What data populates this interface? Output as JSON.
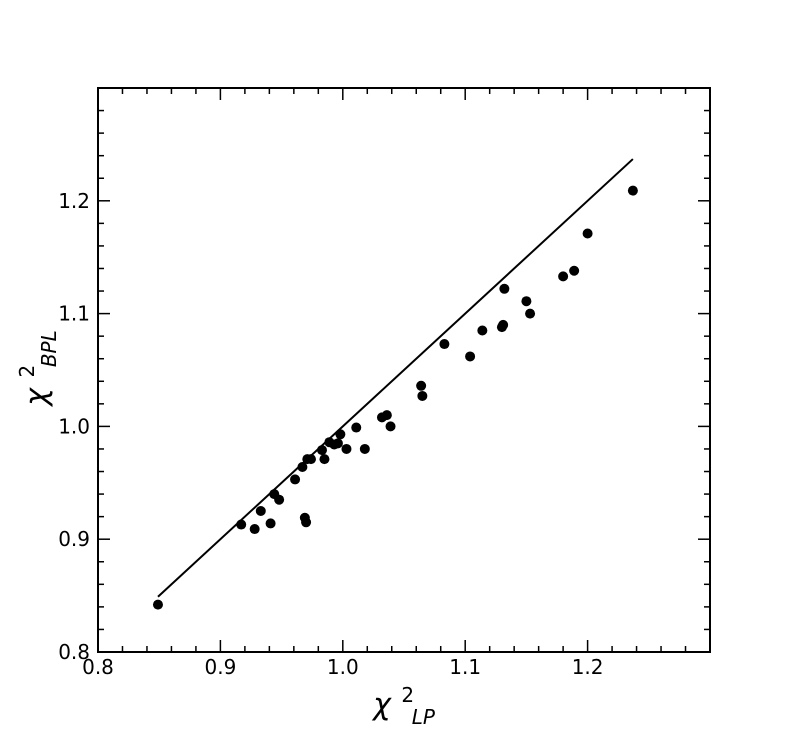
{
  "chart_data": {
    "type": "scatter",
    "title": "",
    "xlabel": {
      "base": "χ",
      "sup": "2",
      "sub": "LP"
    },
    "ylabel": {
      "base": "χ",
      "sup": "2",
      "sub": "BPL"
    },
    "xlim": [
      0.8,
      1.3
    ],
    "ylim": [
      0.8,
      1.3
    ],
    "xticks": [
      0.8,
      0.9,
      1.0,
      1.1,
      1.2
    ],
    "yticks": [
      0.8,
      0.9,
      1.0,
      1.1,
      1.2
    ],
    "xtick_labels": [
      "0.8",
      "0.9",
      "1.0",
      "1.1",
      "1.2"
    ],
    "ytick_labels": [
      "0.8",
      "0.9",
      "1.0",
      "1.1",
      "1.2"
    ],
    "minor_step": 0.02,
    "ticks_direction": "in",
    "ticks_all_sides": true,
    "grid": false,
    "legend": null,
    "colors": {
      "points": "#000000",
      "line": "#000000",
      "axes": "#000000"
    },
    "line": {
      "x": [
        0.849,
        1.237
      ],
      "y": [
        0.849,
        1.237
      ]
    },
    "points": [
      {
        "x": 0.849,
        "y": 0.842
      },
      {
        "x": 0.917,
        "y": 0.913
      },
      {
        "x": 0.928,
        "y": 0.909
      },
      {
        "x": 0.933,
        "y": 0.925
      },
      {
        "x": 0.941,
        "y": 0.914
      },
      {
        "x": 0.944,
        "y": 0.94
      },
      {
        "x": 0.948,
        "y": 0.935
      },
      {
        "x": 0.961,
        "y": 0.953
      },
      {
        "x": 0.967,
        "y": 0.964
      },
      {
        "x": 0.969,
        "y": 0.919
      },
      {
        "x": 0.97,
        "y": 0.915
      },
      {
        "x": 0.971,
        "y": 0.971
      },
      {
        "x": 0.974,
        "y": 0.971
      },
      {
        "x": 0.983,
        "y": 0.979
      },
      {
        "x": 0.985,
        "y": 0.971
      },
      {
        "x": 0.989,
        "y": 0.986
      },
      {
        "x": 0.993,
        "y": 0.984
      },
      {
        "x": 0.996,
        "y": 0.985
      },
      {
        "x": 0.998,
        "y": 0.993
      },
      {
        "x": 1.003,
        "y": 0.98
      },
      {
        "x": 1.011,
        "y": 0.999
      },
      {
        "x": 1.018,
        "y": 0.98
      },
      {
        "x": 1.032,
        "y": 1.008
      },
      {
        "x": 1.036,
        "y": 1.01
      },
      {
        "x": 1.039,
        "y": 1.0
      },
      {
        "x": 1.064,
        "y": 1.036
      },
      {
        "x": 1.065,
        "y": 1.027
      },
      {
        "x": 1.083,
        "y": 1.073
      },
      {
        "x": 1.104,
        "y": 1.062
      },
      {
        "x": 1.114,
        "y": 1.085
      },
      {
        "x": 1.13,
        "y": 1.088
      },
      {
        "x": 1.131,
        "y": 1.09
      },
      {
        "x": 1.132,
        "y": 1.122
      },
      {
        "x": 1.15,
        "y": 1.111
      },
      {
        "x": 1.153,
        "y": 1.1
      },
      {
        "x": 1.18,
        "y": 1.133
      },
      {
        "x": 1.189,
        "y": 1.138
      },
      {
        "x": 1.2,
        "y": 1.171
      },
      {
        "x": 1.237,
        "y": 1.209
      }
    ]
  }
}
